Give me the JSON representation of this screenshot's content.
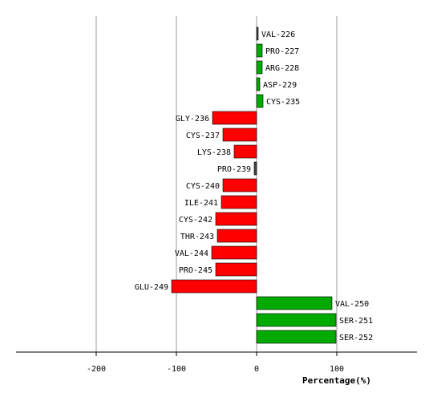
{
  "chart_data": {
    "type": "bar",
    "orientation": "horizontal",
    "xlabel": "Percentage(%)",
    "xlim": [
      -300,
      200
    ],
    "xticks": [
      -200,
      -100,
      0,
      100
    ],
    "grid": true,
    "categories": [
      "VAL-226",
      "PRO-227",
      "ARG-228",
      "ASP-229",
      "CYS-235",
      "GLY-236",
      "CYS-237",
      "LYS-238",
      "PRO-239",
      "CYS-240",
      "ILE-241",
      "CYS-242",
      "THR-243",
      "VAL-244",
      "PRO-245",
      "GLU-249",
      "VAL-250",
      "SER-251",
      "SER-252"
    ],
    "values": [
      2,
      7,
      7,
      4,
      8,
      -55,
      -42,
      -28,
      -3,
      -42,
      -44,
      -51,
      -49,
      -56,
      -51,
      -106,
      94,
      99,
      99
    ],
    "colors": {
      "positive": "#00aa00",
      "negative": "#ff0000",
      "small": "#444444",
      "grid": "#999999",
      "axis": "#000000"
    }
  }
}
